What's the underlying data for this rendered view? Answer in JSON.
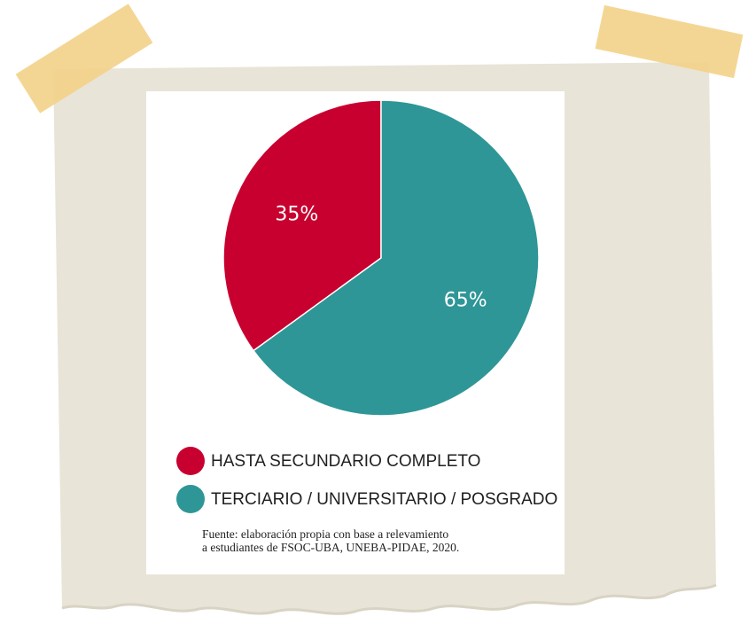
{
  "chart_data": {
    "type": "pie",
    "categories": [
      "HASTA SECUNDARIO COMPLETO",
      "TERCIARIO / UNIVERSITARIO / POSGRADO"
    ],
    "values": [
      35,
      65
    ],
    "value_labels": [
      "35%",
      "65%"
    ],
    "colors": [
      "#c8002f",
      "#2e9696"
    ],
    "source": [
      "Fuente: elaboración propia con base a relevamiento",
      "a estudiantes de FSOC-UBA, UNEBA-PIDAE, 2020."
    ]
  }
}
